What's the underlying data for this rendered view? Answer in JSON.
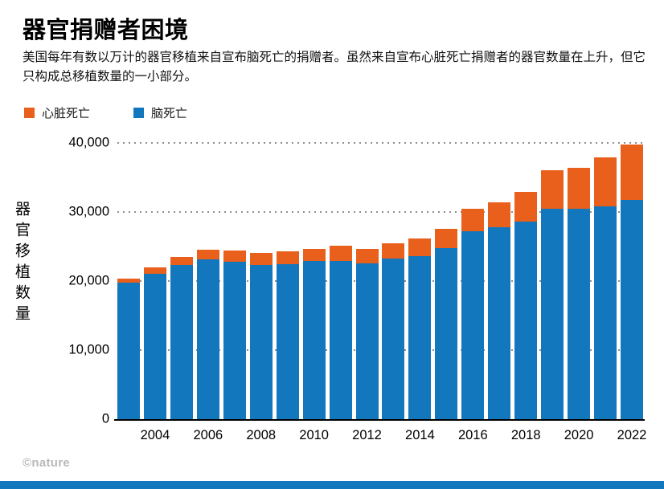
{
  "header": {
    "title": "器官捐赠者困境",
    "subtitle": "美国每年有数以万计的器官移植来自宣布脑死亡的捐赠者。虽然来自宣布心脏死亡捐赠者的器官数量在上升，但它只构成总移植数量的一小部分。"
  },
  "colors": {
    "heart_death": "#E8601C",
    "brain_death": "#1377BD",
    "gridline": "#8f8f8f",
    "accent_strip": "#1377BD"
  },
  "legend": [
    {
      "key": "heart-death",
      "label": "心脏死亡",
      "color": "#E8601C"
    },
    {
      "key": "brain-death",
      "label": "脑死亡",
      "color": "#1377BD"
    }
  ],
  "chart_data": {
    "type": "bar",
    "stacked": true,
    "title": "器官捐赠者困境",
    "xlabel": "",
    "ylabel": "器官移植数量",
    "ylim": [
      0,
      40000
    ],
    "grid": "dotted-horizontal",
    "legend_position": "top-left",
    "x": [
      2003,
      2004,
      2005,
      2006,
      2007,
      2008,
      2009,
      2010,
      2011,
      2012,
      2013,
      2014,
      2015,
      2016,
      2017,
      2018,
      2019,
      2020,
      2021,
      2022
    ],
    "xticks": [
      2004,
      2006,
      2008,
      2010,
      2012,
      2014,
      2016,
      2018,
      2020,
      2022
    ],
    "yticks": [
      {
        "label": "0",
        "value": 0
      },
      {
        "label": "10,000",
        "value": 10000
      },
      {
        "label": "20,000",
        "value": 20000
      },
      {
        "label": "30,000",
        "value": 30000
      },
      {
        "label": "40,000",
        "value": 40000
      }
    ],
    "series": [
      {
        "key": "brain-death",
        "name": "脑死亡",
        "color": "#1377BD",
        "values": [
          19800,
          21000,
          22300,
          23100,
          22800,
          22300,
          22500,
          22900,
          22900,
          22600,
          23200,
          23600,
          24800,
          27200,
          27800,
          28600,
          30500,
          30500,
          30800,
          31800
        ]
      },
      {
        "key": "heart-death",
        "name": "心脏死亡",
        "color": "#E8601C",
        "values": [
          600,
          1000,
          1200,
          1400,
          1600,
          1800,
          1800,
          1700,
          2200,
          2100,
          2300,
          2600,
          2800,
          3300,
          3600,
          4300,
          5500,
          5900,
          7100,
          8000
        ]
      }
    ]
  },
  "footer": {
    "watermark": "©nature"
  }
}
